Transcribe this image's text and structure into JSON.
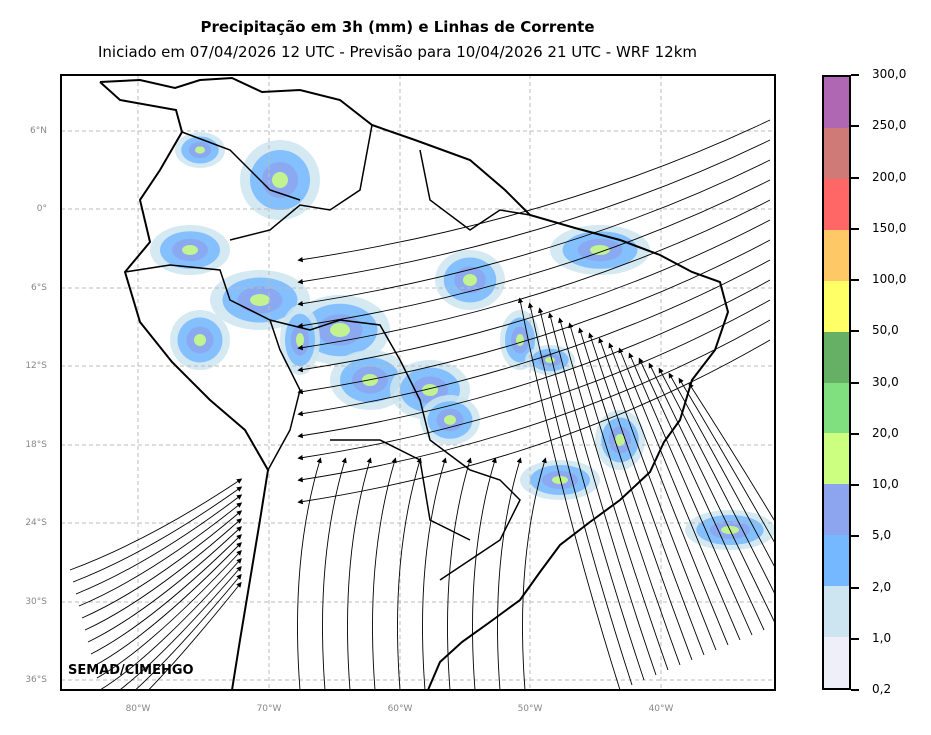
{
  "title": "Precipitação em 3h (mm) e Linhas de Corrente",
  "subtitle": "Iniciado em 07/04/2026 12 UTC - Previsão para 10/04/2026 21 UTC - WRF 12km",
  "credit": "SEMAD/CIMEHGO",
  "lat_labels": [
    "6°N",
    "0°",
    "6°S",
    "12°S",
    "18°S",
    "24°S",
    "30°S",
    "36°S"
  ],
  "lon_labels": [
    "80°W",
    "70°W",
    "60°W",
    "50°W",
    "40°W"
  ],
  "colorbar": {
    "labels": [
      "300,0",
      "250,0",
      "200,0",
      "150,0",
      "100,0",
      "50,0",
      "30,0",
      "20,0",
      "10,0",
      "5,0",
      "2,0",
      "1,0",
      "0,2"
    ],
    "colors": [
      "#b067b3",
      "#cf7a76",
      "#ff6666",
      "#ffc866",
      "#ffff66",
      "#66b066",
      "#80e080",
      "#ccff80",
      "#8ca5ee",
      "#75b8ff",
      "#cce5f0",
      "#efeffa"
    ]
  }
}
